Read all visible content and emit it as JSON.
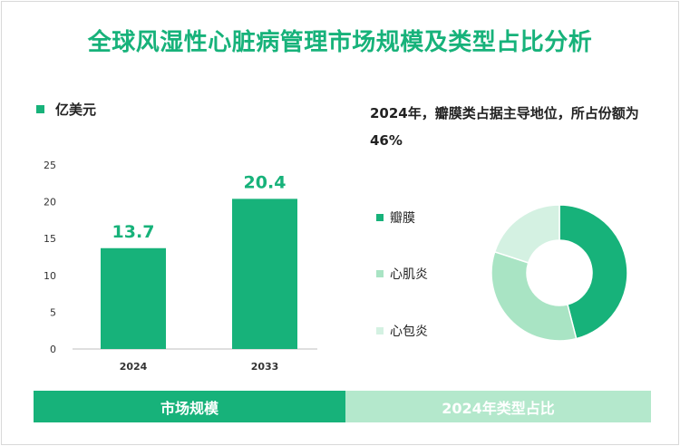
{
  "title": "全球风湿性心脏病管理市场规模及类型占比分析",
  "unit": "亿美元",
  "pie_title": "2024年，瓣膜类占据主导地位，所占份额为46%",
  "bottom": {
    "left": "市场规模",
    "right": "2024年类型占比"
  },
  "colors": {
    "primary": "#17b27a",
    "mid": "#a9e4c4",
    "light": "#d4f1e2"
  },
  "chart_data": [
    {
      "type": "bar",
      "categories": [
        "2024",
        "2033"
      ],
      "values": [
        13.7,
        20.4
      ],
      "ylim": [
        0,
        25
      ],
      "yticks": [
        0,
        5,
        10,
        15,
        20,
        25
      ],
      "ylabel": "亿美元",
      "color": "#17b27a"
    },
    {
      "type": "pie",
      "labels": [
        "瓣膜",
        "心肌炎",
        "心包炎"
      ],
      "values": [
        46,
        34,
        20
      ],
      "colors": [
        "#17b27a",
        "#a9e4c4",
        "#d4f1e2"
      ],
      "donut": true
    }
  ]
}
